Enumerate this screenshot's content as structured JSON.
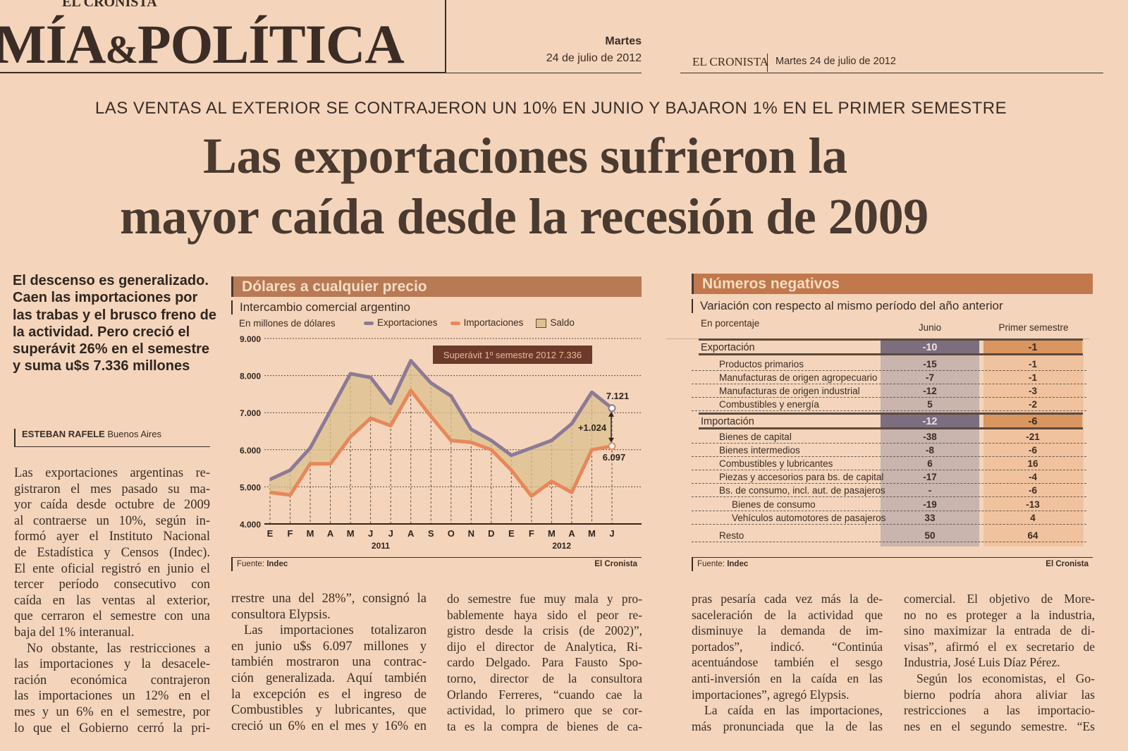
{
  "masthead": {
    "paper_name": "EL CRONISTA",
    "section": "MÍA",
    "section_amp": "&",
    "section_end": "POLÍTICA",
    "day": "Martes",
    "date": "24 de julio de 2012",
    "right_paper_name": "EL CRONISTA",
    "right_date": "Martes 24 de julio de 2012"
  },
  "article": {
    "kicker": "LAS VENTAS AL EXTERIOR SE CONTRAJERON UN 10% EN JUNIO Y  BAJARON 1% EN EL PRIMER SEMESTRE",
    "headline_line1": "Las exportaciones sufrieron la",
    "headline_line2": "mayor caída desde la recesión de 2009",
    "lead": "El descenso es generalizado. Caen las importaciones por las trabas y el brusco freno de la actividad. Pero creció el superávit 26% en el semestre y suma u$s 7.336 millones",
    "byline_author": "ESTEBAN RAFELE",
    "byline_place": "Buenos Aires",
    "col1": [
      {
        "t": "Las exportaciones argentinas re-"
      },
      {
        "t": "gistraron el mes pasado su ma-"
      },
      {
        "t": "yor caída desde octubre de 2009"
      },
      {
        "t": "al contraerse un 10%, según in-"
      },
      {
        "t": "formó ayer el Instituto Nacional"
      },
      {
        "t": "de Estadística y Censos (Indec)."
      },
      {
        "t": "El ente oficial registró en junio el"
      },
      {
        "t": "tercer período consecutivo con"
      },
      {
        "t": "caída en las ventas al exterior,"
      },
      {
        "t": "que cerraron el semestre con una"
      },
      {
        "t": "baja del 1% interanual.",
        "last": true
      },
      {
        "t": "No obstante, las restricciones a",
        "ind": true
      },
      {
        "t": "las importaciones y la desacele-"
      },
      {
        "t": "ración económica contrajeron"
      },
      {
        "t": "las importaciones un 12% en el"
      },
      {
        "t": "mes y un 6% en el semestre, por"
      },
      {
        "t": "lo que el Gobierno cerró la pri-"
      }
    ],
    "col2": [
      {
        "t": "rrestre una del 28%”, consignó la"
      },
      {
        "t": "consultora Elypsis.",
        "last": true
      },
      {
        "t": "Las importaciones totalizaron",
        "ind": true
      },
      {
        "t": "en junio u$s 6.097 millones y"
      },
      {
        "t": "también mostraron una contrac-"
      },
      {
        "t": "ción generalizada. Aquí también"
      },
      {
        "t": "la excepción es el ingreso de"
      },
      {
        "t": "Combustibles y lubricantes, que"
      },
      {
        "t": "creció un 6% en el mes y 16% en"
      }
    ],
    "col3": [
      {
        "t": "do semestre fue muy mala y pro-"
      },
      {
        "t": "bablemente haya sido el peor re-"
      },
      {
        "t": "gistro desde la crisis (de 2002)”,"
      },
      {
        "t": "dijo el director de Analytica, Ri-"
      },
      {
        "t": "cardo Delgado. Para Fausto Spo-"
      },
      {
        "t": "torno, director de la consultora"
      },
      {
        "t": "Orlando Ferreres, “cuando cae la"
      },
      {
        "t": "actividad, lo primero que se cor-"
      },
      {
        "t": "ta es la compra de bienes de ca-"
      }
    ],
    "col4": [
      {
        "t": "pras pesaría cada vez más la de-"
      },
      {
        "t": "saceleración de la actividad que"
      },
      {
        "t": "disminuye la demanda de im-"
      },
      {
        "t": "portados”, indicó. “Continúa"
      },
      {
        "t": "acentuándose también el sesgo"
      },
      {
        "t": "anti-inversión en la caída en las"
      },
      {
        "t": "importaciones”, agregó Elypsis.",
        "last": true
      },
      {
        "t": "La caída en las importaciones,",
        "ind": true
      },
      {
        "t": "más pronunciada que la de las"
      }
    ],
    "col5": [
      {
        "t": "comercial. El objetivo de More-"
      },
      {
        "t": "no no es proteger a la industria,"
      },
      {
        "t": "sino maximizar la entrada de di-"
      },
      {
        "t": "visas”, afirmó el ex secretario de"
      },
      {
        "t": "Industria, José Luis Díaz Pérez.",
        "last": true
      },
      {
        "t": "Según los economistas, el Go-",
        "ind": true
      },
      {
        "t": "bierno podría ahora aliviar las"
      },
      {
        "t": "restricciones a las importacio-"
      },
      {
        "t": "nes en el segundo semestre. “Es"
      }
    ]
  },
  "chart_box": {
    "title": "Dólares a cualquier precio",
    "subtitle": "Intercambio comercial argentino",
    "source_label": "Fuente:",
    "source": "Indec",
    "credit": "El Cronista"
  },
  "chart_data": {
    "type": "line",
    "ylabel": "En millones de dólares",
    "ylim": [
      4000,
      9000
    ],
    "yticks": [
      "4.000",
      "5.000",
      "6.000",
      "7.000",
      "8.000",
      "9.000"
    ],
    "categories": [
      "E",
      "F",
      "M",
      "A",
      "M",
      "J",
      "J",
      "A",
      "S",
      "O",
      "N",
      "D",
      "E",
      "F",
      "M",
      "A",
      "M",
      "J"
    ],
    "years": [
      "2011",
      "2012"
    ],
    "legend": [
      "Exportaciones",
      "Importaciones",
      "Saldo"
    ],
    "series": [
      {
        "name": "Exportaciones",
        "color": "#8c7a96",
        "values": [
          5200,
          5450,
          6050,
          7050,
          8050,
          7950,
          7250,
          8400,
          7800,
          7450,
          6550,
          6250,
          5850,
          6050,
          6250,
          6700,
          7550,
          7121
        ]
      },
      {
        "name": "Importaciones",
        "color": "#e8875a",
        "values": [
          4850,
          4780,
          5620,
          5620,
          6350,
          6850,
          6650,
          7600,
          6900,
          6250,
          6200,
          6000,
          5450,
          4750,
          5150,
          4850,
          6000,
          6097
        ]
      }
    ],
    "fill_color": "#dcc08f",
    "annotations": {
      "box": "Superávit 1º semestre 2012   7.336",
      "last_export": "7.121",
      "last_import": "6.097",
      "diff": "+1.024"
    }
  },
  "table_box": {
    "title": "Números negativos",
    "subtitle": "Variación con respecto al mismo período del año anterior",
    "unit": "En porcentaje",
    "col_headers": [
      "Junio",
      "Primer semestre"
    ],
    "rows": [
      {
        "label": "Exportación",
        "junio": "-10",
        "semestre": "-1",
        "main": true
      },
      {
        "label": "Productos primarios",
        "junio": "-15",
        "semestre": "-1"
      },
      {
        "label": "Manufacturas de origen agropecuario",
        "junio": "-7",
        "semestre": "-1"
      },
      {
        "label": "Manufacturas de origen industrial",
        "junio": "-12",
        "semestre": "-3"
      },
      {
        "label": "Combustibles y energía",
        "junio": "5",
        "semestre": "-2"
      },
      {
        "label": "Importación",
        "junio": "-12",
        "semestre": "-6",
        "main": true
      },
      {
        "label": "Bienes de capital",
        "junio": "-38",
        "semestre": "-21"
      },
      {
        "label": "Bienes intermedios",
        "junio": "-8",
        "semestre": "-6"
      },
      {
        "label": "Combustibles y lubricantes",
        "junio": "6",
        "semestre": "16"
      },
      {
        "label": "Piezas y accesorios para bs. de capital",
        "junio": "-17",
        "semestre": "-4"
      },
      {
        "label": "Bs. de consumo, incl. aut. de pasajeros",
        "junio": "-",
        "semestre": "-6"
      },
      {
        "label": "Bienes de consumo",
        "junio": "-19",
        "semestre": "-13",
        "deep": true
      },
      {
        "label": "Vehículos automotores de pasajeros",
        "junio": "33",
        "semestre": "4",
        "deep": true
      },
      {
        "label": "Resto",
        "junio": "50",
        "semestre": "64"
      }
    ],
    "source_label": "Fuente:",
    "source": "Indec",
    "credit": "El Cronista"
  }
}
